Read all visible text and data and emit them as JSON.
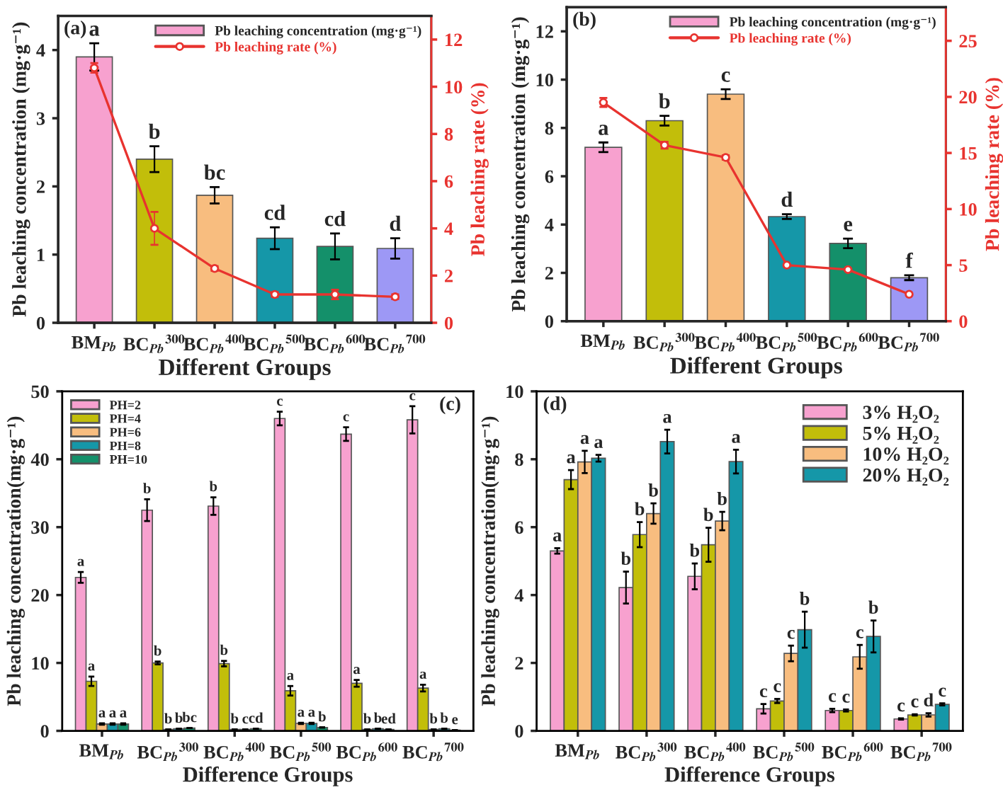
{
  "chart_data": [
    {
      "type": "bar",
      "xlabel": "Different Groups",
      "ylabel": "Pb leaching concentration (mg·g⁻¹)",
      "y2label": "Pb leaching rate (%)",
      "annotations": [
        "(a)"
      ],
      "categories": [
        "BM$_{Pb}$",
        "BC$_{Pb}$$^{300}$",
        "BC$_{Pb}$$^{400}$",
        "BC$_{Pb}$$^{500}$",
        "BC$_{Pb}$$^{600}$",
        "BC$_{Pb}$$^{700}$"
      ],
      "ylim": [
        0,
        4.5
      ],
      "yticks": [
        0,
        1,
        2,
        3,
        4
      ],
      "y2lim": [
        0,
        13
      ],
      "y2ticks": [
        0,
        2,
        4,
        6,
        8,
        10,
        12
      ],
      "legend": "top right",
      "marker": "circle",
      "series": [
        {
          "name": "Pb leaching concentration (mg·g⁻¹)",
          "type": "bar",
          "colors": [
            "#f7a1cf",
            "#c2be0a",
            "#f8bd7f",
            "#1597a8",
            "#14906a",
            "#9d98f5"
          ],
          "values": [
            3.9,
            2.4,
            1.87,
            1.24,
            1.12,
            1.09
          ],
          "errors": [
            0.2,
            0.19,
            0.12,
            0.16,
            0.19,
            0.15
          ],
          "value_labels": [
            "a",
            "b",
            "bc",
            "cd",
            "cd",
            "d"
          ]
        },
        {
          "name": "Pb leaching rate (%)",
          "type": "line",
          "axis": "y2",
          "color": "#e8332f",
          "values": [
            10.8,
            4.0,
            2.3,
            1.2,
            1.2,
            1.1
          ],
          "errors": [
            0.2,
            0.7,
            0.1,
            0.1,
            0.2,
            0.1
          ]
        }
      ]
    },
    {
      "type": "bar",
      "xlabel": "Different Groups",
      "ylabel": "Pb leaching concentration (mg·g⁻¹)",
      "y2label": "Pb leaching rate (%)",
      "annotations": [
        "(b)"
      ],
      "categories": [
        "BM$_{Pb}$",
        "BC$_{Pb}$$^{300}$",
        "BC$_{Pb}$$^{400}$",
        "BC$_{Pb}$$^{500}$",
        "BC$_{Pb}$$^{600}$",
        "BC$_{Pb}$$^{700}$"
      ],
      "ylim": [
        0,
        13
      ],
      "yticks": [
        0,
        2,
        4,
        6,
        8,
        10,
        12
      ],
      "y2lim": [
        0,
        28
      ],
      "y2ticks": [
        0,
        5,
        10,
        15,
        20,
        25
      ],
      "legend": "top right",
      "marker": "circle",
      "series": [
        {
          "name": "Pb leaching concentration (mg·g⁻¹)",
          "type": "bar",
          "colors": [
            "#f7a1cf",
            "#c2be0a",
            "#f8bd7f",
            "#1597a8",
            "#14906a",
            "#9d98f5"
          ],
          "values": [
            7.2,
            8.3,
            9.4,
            4.33,
            3.22,
            1.8
          ],
          "errors": [
            0.2,
            0.2,
            0.2,
            0.1,
            0.2,
            0.1
          ],
          "value_labels": [
            "a",
            "b",
            "c",
            "d",
            "e",
            "f"
          ]
        },
        {
          "name": "Pb leaching rate (%)",
          "type": "line",
          "axis": "y2",
          "color": "#e8332f",
          "values": [
            19.5,
            15.7,
            14.6,
            5.0,
            4.6,
            2.4
          ],
          "errors": [
            0.4,
            0.3,
            0.2,
            0.1,
            0.1,
            0.1
          ]
        }
      ]
    },
    {
      "type": "bar",
      "xlabel": "Difference Groups",
      "ylabel": "Pb leaching concentration(mg·g⁻¹)",
      "annotations": [
        "(c)"
      ],
      "categories": [
        "BM$_{Pb}$",
        "BC$_{Pb}$$^{300}$",
        "BC$_{Pb}$$^{400}$",
        "BC$_{Pb}$$^{500}$",
        "BC$_{Pb}$$^{600}$",
        "BC$_{Pb}$$^{700}$"
      ],
      "ylim": [
        0,
        50
      ],
      "yticks": [
        0,
        10,
        20,
        30,
        40,
        50
      ],
      "legend": "top left",
      "series": [
        {
          "name": "PH=2",
          "color": "#f7a1cf",
          "values": [
            22.6,
            32.5,
            33.1,
            46.0,
            43.7,
            45.8
          ],
          "errors": [
            0.8,
            1.6,
            1.3,
            1.0,
            1.0,
            2.0
          ],
          "value_labels": [
            "a",
            "b",
            "b",
            "c",
            "c",
            "c"
          ]
        },
        {
          "name": "PH=4",
          "color": "#c2be0a",
          "values": [
            7.3,
            10.0,
            9.9,
            5.9,
            7.0,
            6.3
          ],
          "errors": [
            0.7,
            0.2,
            0.4,
            0.7,
            0.5,
            0.5
          ],
          "value_labels": [
            "a",
            "b",
            "b",
            "a",
            "a",
            "a"
          ]
        },
        {
          "name": "PH=6",
          "color": "#f8bd7f",
          "values": [
            1.0,
            0.2,
            0.2,
            1.1,
            0.2,
            0.2
          ],
          "errors": [
            0.1,
            null,
            null,
            0.1,
            null,
            null
          ],
          "value_labels": [
            "a",
            "b",
            "b",
            "a",
            "b",
            "b"
          ]
        },
        {
          "name": "PH=8",
          "color": "#1597a8",
          "values": [
            1.0,
            0.3,
            0.2,
            1.1,
            0.3,
            0.3
          ],
          "errors": [
            0.1,
            null,
            null,
            0.1,
            null,
            null
          ],
          "value_labels": [
            "a",
            "b",
            "c",
            "a",
            "b",
            "b"
          ]
        },
        {
          "name": "PH=10",
          "color": "#14906a",
          "values": [
            1.0,
            0.4,
            0.3,
            0.5,
            0.2,
            0.1
          ],
          "errors": [
            0.1,
            null,
            null,
            null,
            null,
            null
          ],
          "value_labels": [
            "a",
            "bc",
            "cd",
            "b",
            "ed",
            "e"
          ]
        }
      ]
    },
    {
      "type": "bar",
      "xlabel": "Difference Groups",
      "ylabel": "Pb leaching concentration(mg·g⁻¹)",
      "annotations": [
        "(d)"
      ],
      "categories": [
        "BM$_{Pb}$",
        "BC$_{Pb}$$^{300}$",
        "BC$_{Pb}$$^{400}$",
        "BC$_{Pb}$$^{500}$",
        "BC$_{Pb}$$^{600}$",
        "BC$_{Pb}$$^{700}$"
      ],
      "ylim": [
        0,
        10
      ],
      "yticks": [
        0,
        2,
        4,
        6,
        8,
        10
      ],
      "legend": "top right",
      "series": [
        {
          "name": "3% H₂O₂",
          "color": "#f7a1cf",
          "values": [
            5.3,
            4.22,
            4.55,
            0.65,
            0.6,
            0.35
          ],
          "errors": [
            0.08,
            0.47,
            0.38,
            0.14,
            0.05,
            0.02
          ],
          "value_labels": [
            "a",
            "b",
            "b",
            "c",
            "c",
            "c"
          ]
        },
        {
          "name": "5% H₂O₂",
          "color": "#c2be0a",
          "values": [
            7.4,
            5.78,
            5.48,
            0.88,
            0.6,
            0.47
          ],
          "errors": [
            0.28,
            0.37,
            0.5,
            0.06,
            0.03,
            0.02
          ],
          "value_labels": [
            "a",
            "b",
            "b",
            "c",
            "c",
            "c"
          ]
        },
        {
          "name": "10% H₂O₂",
          "color": "#f8bd7f",
          "values": [
            7.92,
            6.4,
            6.18,
            2.28,
            2.18,
            0.47
          ],
          "errors": [
            0.33,
            0.3,
            0.27,
            0.23,
            0.35,
            0.05
          ],
          "value_labels": [
            "a",
            "b",
            "b",
            "c",
            "c",
            "d"
          ]
        },
        {
          "name": "20% H₂O₂",
          "color": "#1597a8",
          "values": [
            8.03,
            8.52,
            7.93,
            2.98,
            2.78,
            0.78
          ],
          "errors": [
            0.1,
            0.35,
            0.35,
            0.53,
            0.47,
            0.03
          ],
          "value_labels": [
            "a",
            "a",
            "a",
            "b",
            "b",
            "c"
          ]
        }
      ]
    }
  ]
}
